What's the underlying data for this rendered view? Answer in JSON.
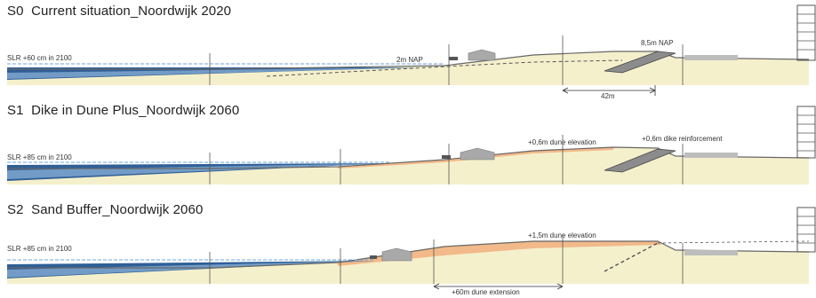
{
  "panels": [
    {
      "code": "S0",
      "title": "Current situation_Noordwijk 2020",
      "slr_label": "SLR +60 cm in 2100",
      "labels": {
        "beach_level": "2m NAP",
        "dune_top": "8,5m NAP",
        "width": "42m"
      }
    },
    {
      "code": "S1",
      "title": "Dike in Dune Plus_Noordwijk 2060",
      "slr_label": "SLR +85 cm in 2100",
      "labels": {
        "dune_elevation": "+0,6m dune elevation",
        "dike_reinforcement": "+0,6m dike reinforcement"
      }
    },
    {
      "code": "S2",
      "title": "Sand Buffer_Noordwijk 2060",
      "slr_label": "SLR +85 cm in 2100",
      "labels": {
        "dune_elevation": "+1,5m dune elevation",
        "dune_extension": "+60m dune extension"
      }
    }
  ],
  "colors": {
    "sea_dark": "#2f5f97",
    "sea_light": "#8fb6dc",
    "sand": "#f5f0cc",
    "nourishment": "#f2b98a",
    "building": "#a9a9a9",
    "sea_level_line": "#6aa6d9"
  }
}
